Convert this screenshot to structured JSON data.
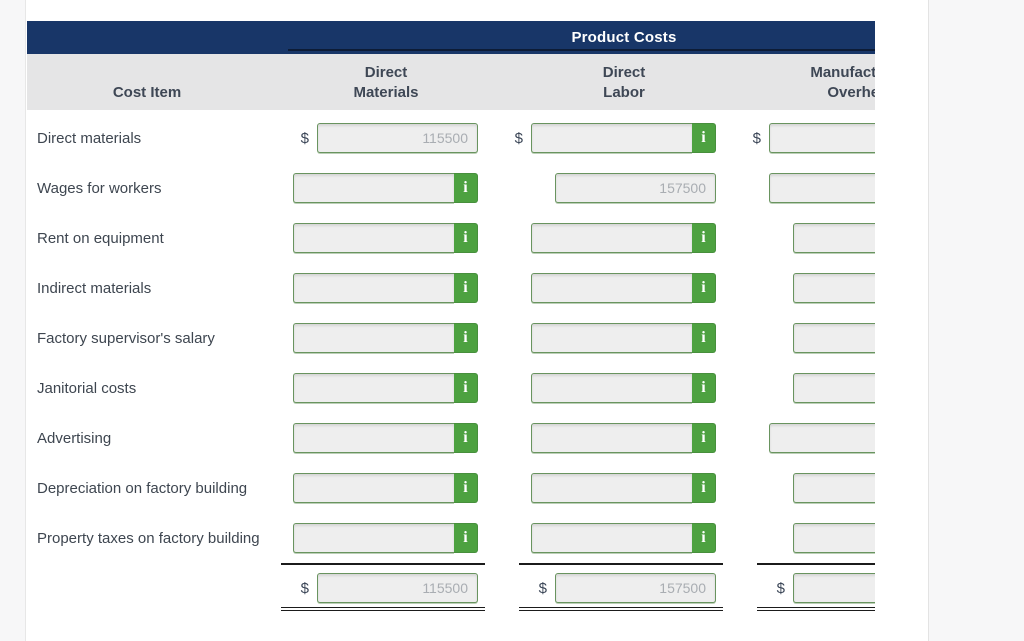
{
  "colors": {
    "page_background": "#f7f7f8",
    "card_background": "#ffffff",
    "header_navy": "#183668",
    "header_gray": "#e5e5e6",
    "input_border_green": "#69945f",
    "input_fill": "#eeeeee",
    "info_button_green": "#4da140",
    "value_text_gray": "#a9adb2",
    "label_text": "#3e4650"
  },
  "table": {
    "spanner_label": "Product Costs",
    "info_icon": "i",
    "dollar_symbol": "$",
    "columns": [
      {
        "lines": [
          "Cost Item"
        ]
      },
      {
        "lines": [
          "Direct",
          "Materials"
        ]
      },
      {
        "lines": [
          "Direct",
          "Labor"
        ]
      },
      {
        "lines": [
          "Manufacturing",
          "Overhead"
        ]
      }
    ]
  },
  "rows": [
    {
      "label": "Direct materials",
      "cells": [
        {
          "dollar": true,
          "value": "115500",
          "info": false
        },
        {
          "dollar": true,
          "value": "",
          "info": true
        },
        {
          "dollar": true,
          "value": "",
          "info": true
        }
      ]
    },
    {
      "label": "Wages for workers",
      "cells": [
        {
          "dollar": false,
          "value": "",
          "info": true
        },
        {
          "dollar": false,
          "value": "157500",
          "info": false
        },
        {
          "dollar": false,
          "value": "",
          "info": true
        }
      ]
    },
    {
      "label": "Rent on equipment",
      "cells": [
        {
          "dollar": false,
          "value": "",
          "info": true
        },
        {
          "dollar": false,
          "value": "",
          "info": true
        },
        {
          "dollar": false,
          "value": "",
          "info": false
        }
      ]
    },
    {
      "label": "Indirect materials",
      "cells": [
        {
          "dollar": false,
          "value": "",
          "info": true
        },
        {
          "dollar": false,
          "value": "",
          "info": true
        },
        {
          "dollar": false,
          "value": "",
          "info": false
        }
      ]
    },
    {
      "label": "Factory supervisor's salary",
      "cells": [
        {
          "dollar": false,
          "value": "",
          "info": true
        },
        {
          "dollar": false,
          "value": "",
          "info": true
        },
        {
          "dollar": false,
          "value": "",
          "info": false
        }
      ]
    },
    {
      "label": "Janitorial costs",
      "cells": [
        {
          "dollar": false,
          "value": "",
          "info": true
        },
        {
          "dollar": false,
          "value": "",
          "info": true
        },
        {
          "dollar": false,
          "value": "",
          "info": false
        }
      ]
    },
    {
      "label": "Advertising",
      "cells": [
        {
          "dollar": false,
          "value": "",
          "info": true
        },
        {
          "dollar": false,
          "value": "",
          "info": true
        },
        {
          "dollar": false,
          "value": "",
          "info": true
        }
      ]
    },
    {
      "label": "Depreciation on factory building",
      "cells": [
        {
          "dollar": false,
          "value": "",
          "info": true
        },
        {
          "dollar": false,
          "value": "",
          "info": true
        },
        {
          "dollar": false,
          "value": "",
          "info": false
        }
      ]
    },
    {
      "label": "Property taxes on factory building",
      "cells": [
        {
          "dollar": false,
          "value": "",
          "info": true
        },
        {
          "dollar": false,
          "value": "",
          "info": true
        },
        {
          "dollar": false,
          "value": "",
          "info": false
        }
      ]
    }
  ],
  "totals": {
    "cells": [
      {
        "dollar": true,
        "value": "115500"
      },
      {
        "dollar": true,
        "value": "157500"
      },
      {
        "dollar": true,
        "value": ""
      }
    ]
  }
}
